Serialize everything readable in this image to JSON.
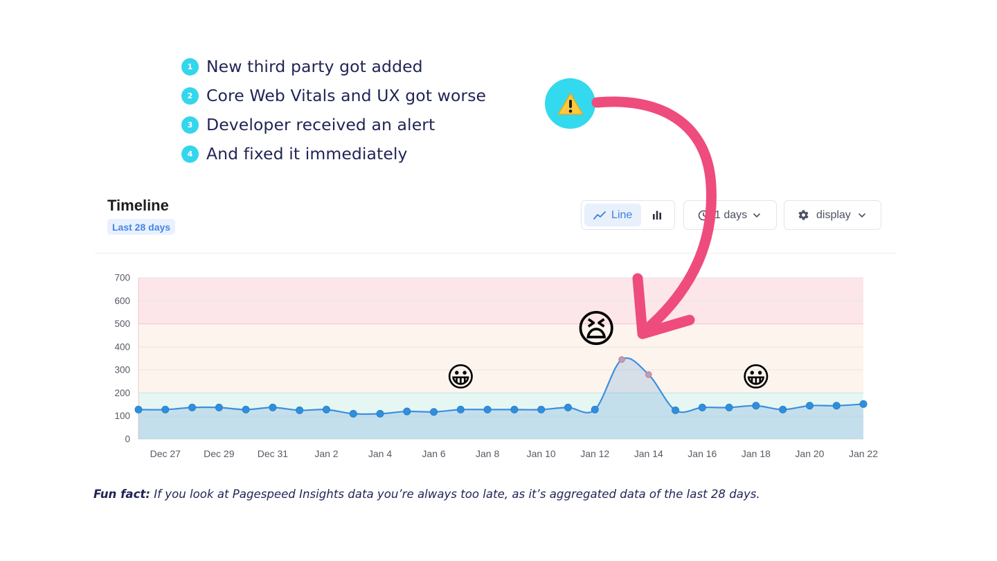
{
  "steps": [
    {
      "num": "1",
      "text": "New third party got added"
    },
    {
      "num": "2",
      "text": "Core Web Vitals and UX got worse"
    },
    {
      "num": "3",
      "text": "Developer received an alert"
    },
    {
      "num": "4",
      "text": "And fixed it immediately"
    }
  ],
  "card": {
    "title": "Timeline",
    "range_badge": "Last 28 days",
    "toggle_line_label": "Line",
    "interval_label": "1 days",
    "display_label": "display"
  },
  "footnote": {
    "lead": "Fun fact:",
    "text": " If you look at Pagespeed Insights data you’re always too late, as it’s aggregated data of the last 28 days."
  },
  "icons": {
    "warning": "warning-sign-emoji",
    "line_chart": "line-chart-icon",
    "bar_chart": "bar-chart-icon",
    "interval": "clock-icon",
    "display": "gear-icon",
    "chevron": "chevron-down-icon"
  },
  "colors": {
    "accent_cyan": "#33d6ec",
    "arrow_pink": "#ee4c7c",
    "series_blue": "#3c8fe0",
    "zone_good": "#e6f6f3",
    "zone_needs_improvement": "#fdf4ee",
    "zone_poor": "#fce6ea"
  },
  "chart_data": {
    "type": "area",
    "title": "",
    "xlabel": "",
    "ylabel": "",
    "ylim": [
      0,
      700
    ],
    "yticks": [
      0,
      100,
      200,
      300,
      400,
      500,
      600,
      700
    ],
    "grid": true,
    "x_tick_labels": [
      "Dec 27",
      "Dec 29",
      "Dec 31",
      "Jan 2",
      "Jan 4",
      "Jan 6",
      "Jan 8",
      "Jan 10",
      "Jan 12",
      "Jan 14",
      "Jan 16",
      "Jan 18",
      "Jan 20",
      "Jan 22"
    ],
    "threshold_bands": [
      {
        "from": 0,
        "to": 200,
        "zone": "good"
      },
      {
        "from": 200,
        "to": 500,
        "zone": "needs-improvement"
      },
      {
        "from": 500,
        "to": 700,
        "zone": "poor"
      }
    ],
    "series": [
      {
        "x": [
          "Dec 26",
          "Dec 27",
          "Dec 28",
          "Dec 29",
          "Dec 30",
          "Dec 31",
          "Jan 1",
          "Jan 2",
          "Jan 3",
          "Jan 4",
          "Jan 5",
          "Jan 6",
          "Jan 7",
          "Jan 8",
          "Jan 9",
          "Jan 10",
          "Jan 11",
          "Jan 12",
          "Jan 13",
          "Jan 14",
          "Jan 15",
          "Jan 16",
          "Jan 17",
          "Jan 18",
          "Jan 19",
          "Jan 20",
          "Jan 21",
          "Jan 22"
        ],
        "values": [
          128,
          128,
          137,
          137,
          128,
          137,
          125,
          128,
          110,
          110,
          120,
          118,
          128,
          128,
          128,
          128,
          137,
          128,
          345,
          280,
          125,
          137,
          137,
          145,
          128,
          145,
          145,
          152
        ]
      }
    ],
    "emoji_annotations": [
      {
        "emoji": "😀",
        "at_x": "Jan 7"
      },
      {
        "emoji": "😫",
        "at_x": "Jan 12"
      },
      {
        "emoji": "😀",
        "at_x": "Jan 18"
      }
    ]
  }
}
